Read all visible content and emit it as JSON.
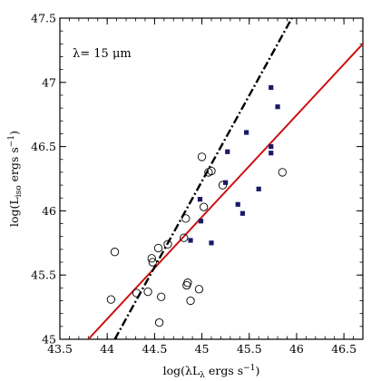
{
  "chart_data": {
    "type": "scatter",
    "xlabel_parts": {
      "prefix": "log(λL",
      "sub": "λ",
      "mid": " ergs s",
      "sup": "−1",
      "suffix": ")"
    },
    "ylabel_parts": {
      "prefix": "log(L",
      "sub": "iso",
      "mid": " ergs s",
      "sup": "−1",
      "suffix": ")"
    },
    "annotation": "λ= 15 μm",
    "xlim": [
      43.5,
      46.7
    ],
    "ylim": [
      45.0,
      47.5
    ],
    "xticks": [
      43.5,
      44,
      44.5,
      45,
      45.5,
      46,
      46.5
    ],
    "xtick_labels": [
      "43.5",
      "44",
      "44.5",
      "45",
      "45.5",
      "46",
      "46.5"
    ],
    "yticks": [
      45,
      45.5,
      46,
      46.5,
      47,
      47.5
    ],
    "ytick_labels": [
      "45",
      "45.5",
      "46",
      "46.5",
      "47",
      "47.5"
    ],
    "grid": false,
    "series": [
      {
        "marker": "open-circle",
        "color": "#000000",
        "points": [
          [
            44.04,
            45.31
          ],
          [
            44.08,
            45.68
          ],
          [
            44.31,
            45.36
          ],
          [
            44.43,
            45.37
          ],
          [
            44.47,
            45.63
          ],
          [
            44.48,
            45.6
          ],
          [
            44.54,
            45.71
          ],
          [
            44.55,
            45.13
          ],
          [
            44.57,
            45.33
          ],
          [
            44.64,
            45.74
          ],
          [
            44.81,
            45.79
          ],
          [
            44.83,
            45.94
          ],
          [
            44.84,
            45.42
          ],
          [
            44.85,
            45.44
          ],
          [
            44.88,
            45.3
          ],
          [
            44.97,
            45.39
          ],
          [
            45.0,
            46.42
          ],
          [
            45.02,
            46.03
          ],
          [
            45.07,
            46.3
          ],
          [
            45.1,
            46.31
          ],
          [
            45.22,
            46.2
          ],
          [
            45.85,
            46.3
          ]
        ]
      },
      {
        "marker": "filled-square",
        "color": "#1a1a66",
        "points": [
          [
            44.88,
            45.77
          ],
          [
            44.98,
            46.09
          ],
          [
            44.99,
            45.92
          ],
          [
            45.1,
            45.75
          ],
          [
            45.25,
            46.22
          ],
          [
            45.27,
            46.46
          ],
          [
            45.38,
            46.05
          ],
          [
            45.43,
            45.98
          ],
          [
            45.47,
            46.61
          ],
          [
            45.6,
            46.17
          ],
          [
            45.73,
            46.96
          ],
          [
            45.73,
            46.5
          ],
          [
            45.73,
            46.45
          ],
          [
            45.8,
            46.81
          ]
        ]
      }
    ],
    "lines": [
      {
        "style": "solid",
        "color": "#cc1111",
        "from": [
          43.8,
          45.0
        ],
        "to": [
          46.7,
          47.3
        ]
      },
      {
        "style": "dash-dot",
        "color": "#000000",
        "from": [
          44.08,
          45.0
        ],
        "to": [
          45.95,
          47.5
        ]
      }
    ]
  }
}
